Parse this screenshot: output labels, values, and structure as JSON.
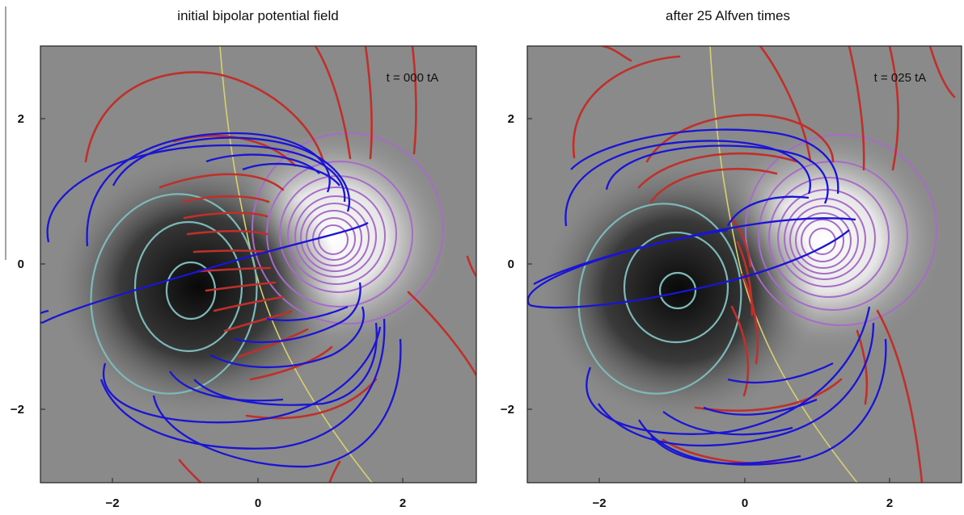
{
  "figure": {
    "panels": [
      {
        "title": "initial bipolar potential field",
        "time_label": "t = 000 tA",
        "x_ticks": [
          "−2",
          "0",
          "2"
        ],
        "y_ticks": [
          "2",
          "0",
          "−2"
        ]
      },
      {
        "title": "after 25 Alfven times",
        "time_label": "t = 025 tA",
        "x_ticks": [
          "−2",
          "0",
          "2"
        ],
        "y_ticks": [
          "2",
          "0",
          "−2"
        ]
      }
    ]
  },
  "colors": {
    "closed_field_lines": "#1a14d6",
    "open_field_lines": "#c0302a",
    "polarity_inversion_line": "#d8d070",
    "negative_contours": "#7fb8b8",
    "positive_contours": "#a66cc8"
  }
}
